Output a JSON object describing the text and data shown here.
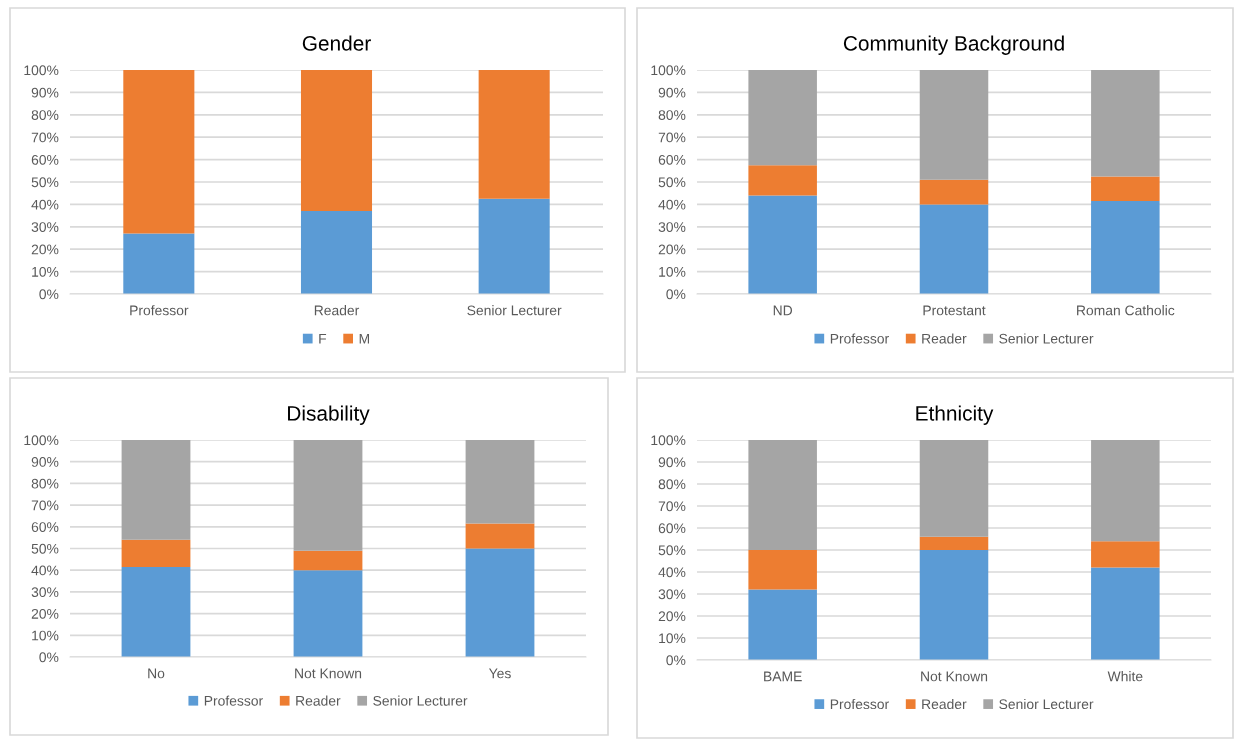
{
  "chart_data": [
    {
      "type": "bar",
      "title": "Gender",
      "stacked": true,
      "categories": [
        "Professor",
        "Reader",
        "Senior Lecturer"
      ],
      "ylim": [
        0,
        100
      ],
      "yticks": [
        {
          "value": 0,
          "label": "0%"
        },
        {
          "value": 10,
          "label": "10%"
        },
        {
          "value": 20,
          "label": "20%"
        },
        {
          "value": 30,
          "label": "30%"
        },
        {
          "value": 40,
          "label": "40%"
        },
        {
          "value": 50,
          "label": "50%"
        },
        {
          "value": 60,
          "label": "60%"
        },
        {
          "value": 70,
          "label": "70%"
        },
        {
          "value": 80,
          "label": "80%"
        },
        {
          "value": 90,
          "label": "90%"
        },
        {
          "value": 100,
          "label": "100%"
        }
      ],
      "grid": "y",
      "legend": "bottom",
      "series": [
        {
          "name": "F",
          "color": "#5b9bd5",
          "values": [
            27,
            37,
            42.5
          ]
        },
        {
          "name": "M",
          "color": "#ed7d31",
          "values": [
            73,
            63,
            57.5
          ]
        }
      ]
    },
    {
      "type": "bar",
      "title": "Community Background",
      "stacked": true,
      "categories": [
        "ND",
        "Protestant",
        "Roman Catholic"
      ],
      "ylim": [
        0,
        100
      ],
      "yticks": [
        {
          "value": 0,
          "label": "0%"
        },
        {
          "value": 10,
          "label": "10%"
        },
        {
          "value": 20,
          "label": "20%"
        },
        {
          "value": 30,
          "label": "30%"
        },
        {
          "value": 40,
          "label": "40%"
        },
        {
          "value": 50,
          "label": "50%"
        },
        {
          "value": 60,
          "label": "60%"
        },
        {
          "value": 70,
          "label": "70%"
        },
        {
          "value": 80,
          "label": "80%"
        },
        {
          "value": 90,
          "label": "90%"
        },
        {
          "value": 100,
          "label": "100%"
        }
      ],
      "grid": "y",
      "legend": "bottom",
      "series": [
        {
          "name": "Professor",
          "color": "#5b9bd5",
          "values": [
            44,
            40,
            41.5
          ]
        },
        {
          "name": "Reader",
          "color": "#ed7d31",
          "values": [
            13.5,
            11,
            11
          ]
        },
        {
          "name": "Senior Lecturer",
          "color": "#a5a5a5",
          "values": [
            42.5,
            49,
            47.5
          ]
        }
      ]
    },
    {
      "type": "bar",
      "title": "Disability",
      "stacked": true,
      "categories": [
        "No",
        "Not Known",
        "Yes"
      ],
      "ylim": [
        0,
        100
      ],
      "yticks": [
        {
          "value": 0,
          "label": "0%"
        },
        {
          "value": 10,
          "label": "10%"
        },
        {
          "value": 20,
          "label": "20%"
        },
        {
          "value": 30,
          "label": "30%"
        },
        {
          "value": 40,
          "label": "40%"
        },
        {
          "value": 50,
          "label": "50%"
        },
        {
          "value": 60,
          "label": "60%"
        },
        {
          "value": 70,
          "label": "70%"
        },
        {
          "value": 80,
          "label": "80%"
        },
        {
          "value": 90,
          "label": "90%"
        },
        {
          "value": 100,
          "label": "100%"
        }
      ],
      "grid": "y",
      "legend": "bottom",
      "series": [
        {
          "name": "Professor",
          "color": "#5b9bd5",
          "values": [
            41.5,
            40,
            50
          ]
        },
        {
          "name": "Reader",
          "color": "#ed7d31",
          "values": [
            12.5,
            9,
            11.5
          ]
        },
        {
          "name": "Senior Lecturer",
          "color": "#a5a5a5",
          "values": [
            46,
            51,
            38.5
          ]
        }
      ]
    },
    {
      "type": "bar",
      "title": "Ethnicity",
      "stacked": true,
      "categories": [
        "BAME",
        "Not Known",
        "White"
      ],
      "ylim": [
        0,
        100
      ],
      "yticks": [
        {
          "value": 0,
          "label": "0%"
        },
        {
          "value": 10,
          "label": "10%"
        },
        {
          "value": 20,
          "label": "20%"
        },
        {
          "value": 30,
          "label": "30%"
        },
        {
          "value": 40,
          "label": "40%"
        },
        {
          "value": 50,
          "label": "50%"
        },
        {
          "value": 60,
          "label": "60%"
        },
        {
          "value": 70,
          "label": "70%"
        },
        {
          "value": 80,
          "label": "80%"
        },
        {
          "value": 90,
          "label": "90%"
        },
        {
          "value": 100,
          "label": "100%"
        }
      ],
      "grid": "y",
      "legend": "bottom",
      "series": [
        {
          "name": "Professor",
          "color": "#5b9bd5",
          "values": [
            32,
            50,
            42
          ]
        },
        {
          "name": "Reader",
          "color": "#ed7d31",
          "values": [
            18,
            6,
            12
          ]
        },
        {
          "name": "Senior Lecturer",
          "color": "#a5a5a5",
          "values": [
            50,
            44,
            46
          ]
        }
      ]
    }
  ]
}
